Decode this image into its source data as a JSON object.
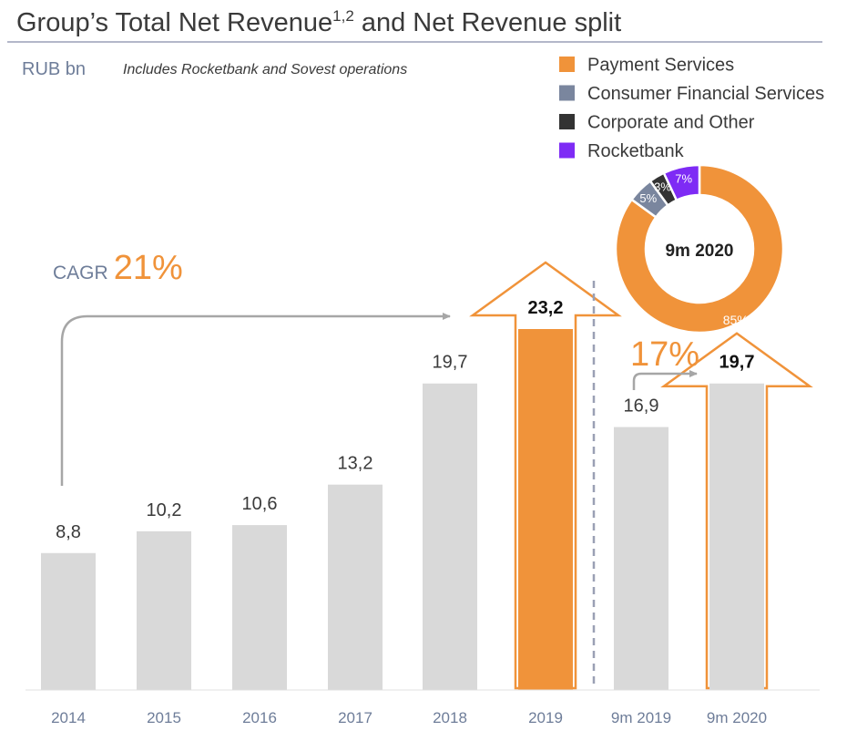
{
  "header": {
    "title_main": "Group’s Total Net Revenue",
    "title_sup": "1,2",
    "title_rest": " and Net Revenue split",
    "unit": "RUB bn",
    "note": "Includes Rocketbank and Sovest operations"
  },
  "cagr": {
    "label": "CAGR",
    "value": "21%"
  },
  "growth": {
    "value": "17%"
  },
  "colors": {
    "bar": "#d9d9d9",
    "highlight": "#f0933a",
    "arrow_grey": "#a6a6a6",
    "axis_text": "#6e7d99",
    "text": "#3a3a3a",
    "divider": "#9aa0b4",
    "rule": "#b3b7c9"
  },
  "chart_data": [
    {
      "type": "bar",
      "title": "Group’s Total Net Revenue",
      "ylabel": "RUB bn",
      "categories": [
        "2014",
        "2015",
        "2016",
        "2017",
        "2018",
        "2019",
        "9m 2019",
        "9m 2020"
      ],
      "values": [
        8.8,
        10.2,
        10.6,
        13.2,
        19.7,
        23.2,
        16.9,
        19.7
      ],
      "value_labels": [
        "8,8",
        "10,2",
        "10,6",
        "13,2",
        "19,7",
        "23,2",
        "16,9",
        "19,7"
      ],
      "highlight": [
        "2019"
      ],
      "bold_labels": [
        "2019",
        "9m 2020"
      ],
      "ylim": [
        0,
        23.2
      ],
      "grid": false
    },
    {
      "type": "pie",
      "title": "9m 2020",
      "center_label": "9m 2020",
      "slices": [
        {
          "name": "Payment Services",
          "value": 85,
          "label": "85%",
          "color": "#f0933a"
        },
        {
          "name": "Consumer Financial Services",
          "value": 5,
          "label": "5%",
          "color": "#7a869e"
        },
        {
          "name": "Corporate and Other",
          "value": 3,
          "label": "3%",
          "color": "#333333"
        },
        {
          "name": "Rocketbank",
          "value": 7,
          "label": "7%",
          "color": "#7e2bf5"
        }
      ]
    }
  ],
  "legend": [
    {
      "label": "Payment Services",
      "color": "#f0933a"
    },
    {
      "label": "Consumer Financial Services",
      "color": "#7a869e"
    },
    {
      "label": "Corporate and Other",
      "color": "#333333"
    },
    {
      "label": "Rocketbank",
      "color": "#7e2bf5"
    }
  ]
}
